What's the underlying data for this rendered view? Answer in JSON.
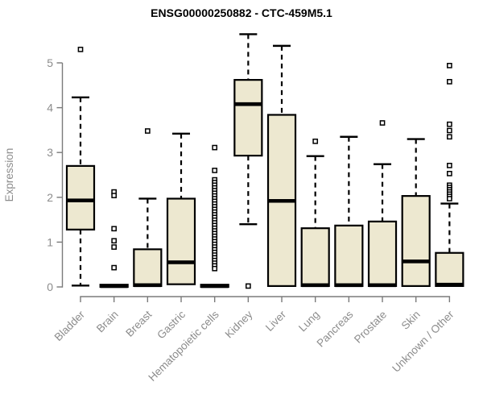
{
  "colors": {
    "box_fill": "#ede8d0",
    "box_border": "#000000",
    "median": "#000000",
    "whisker": "#000000",
    "axis": "#7a7a7a",
    "axis_text": "#8c8c8c",
    "title_text": "#000000",
    "background": "#ffffff"
  },
  "chart_data": {
    "type": "boxplot",
    "title": "ENSG00000250882 - CTC-459M5.1",
    "xlabel": "",
    "ylabel": "Expression",
    "ylim": [
      0,
      5
    ],
    "yticks": [
      0,
      1,
      2,
      3,
      4,
      5
    ],
    "grid": "off",
    "legend": "none",
    "categories": [
      "Bladder",
      "Brain",
      "Breast",
      "Gastric",
      "Hematopoietic cells",
      "Kidney",
      "Liver",
      "Lung",
      "Pancreas",
      "Prostate",
      "Skin",
      "Unknown / Other"
    ],
    "series": [
      {
        "category": "Bladder",
        "whisker_low": 0.03,
        "q1": 1.28,
        "median": 1.93,
        "q3": 2.7,
        "whisker_high": 4.23,
        "outliers": [
          5.3
        ]
      },
      {
        "category": "Brain",
        "whisker_low": 0.0,
        "q1": 0.0,
        "median": 0.02,
        "q3": 0.05,
        "whisker_high": 0.05,
        "outliers": [
          2.12,
          2.04,
          1.3,
          1.03,
          0.89,
          0.43
        ]
      },
      {
        "category": "Breast",
        "whisker_low": 0.02,
        "q1": 0.02,
        "median": 0.04,
        "q3": 0.84,
        "whisker_high": 1.97,
        "outliers": [
          3.48
        ]
      },
      {
        "category": "Gastric",
        "whisker_low": 0.06,
        "q1": 0.06,
        "median": 0.55,
        "q3": 1.97,
        "whisker_high": 3.42,
        "outliers": []
      },
      {
        "category": "Hematopoietic cells",
        "whisker_low": 0.0,
        "q1": 0.0,
        "median": 0.02,
        "q3": 0.05,
        "whisker_high": 0.05,
        "outliers": [
          3.11,
          2.6,
          2.39,
          2.33,
          2.27,
          2.21,
          2.15,
          2.09,
          2.03,
          1.97,
          1.91,
          1.85,
          1.79,
          1.73,
          1.67,
          1.61,
          1.55,
          1.49,
          1.43,
          1.37,
          1.31,
          1.25,
          1.19,
          1.13,
          1.07,
          1.01,
          0.95,
          0.89,
          0.83,
          0.77,
          0.71,
          0.65,
          0.59,
          0.53,
          0.47,
          0.41
        ]
      },
      {
        "category": "Kidney",
        "whisker_low": 1.4,
        "q1": 2.93,
        "median": 4.08,
        "q3": 4.62,
        "whisker_high": 5.64,
        "outliers": [
          0.02
        ]
      },
      {
        "category": "Liver",
        "whisker_low": 0.02,
        "q1": 0.02,
        "median": 1.92,
        "q3": 3.84,
        "whisker_high": 5.38,
        "outliers": []
      },
      {
        "category": "Lung",
        "whisker_low": 0.02,
        "q1": 0.02,
        "median": 0.04,
        "q3": 1.31,
        "whisker_high": 2.92,
        "outliers": [
          3.25
        ]
      },
      {
        "category": "Pancreas",
        "whisker_low": 0.02,
        "q1": 0.02,
        "median": 0.04,
        "q3": 1.37,
        "whisker_high": 3.35,
        "outliers": []
      },
      {
        "category": "Prostate",
        "whisker_low": 0.02,
        "q1": 0.02,
        "median": 0.04,
        "q3": 1.46,
        "whisker_high": 2.74,
        "outliers": [
          3.66
        ]
      },
      {
        "category": "Skin",
        "whisker_low": 0.02,
        "q1": 0.02,
        "median": 0.57,
        "q3": 2.03,
        "whisker_high": 3.3,
        "outliers": []
      },
      {
        "category": "Unknown / Other",
        "whisker_low": 0.02,
        "q1": 0.02,
        "median": 0.05,
        "q3": 0.76,
        "whisker_high": 1.86,
        "outliers": [
          4.94,
          4.58,
          3.63,
          3.49,
          3.35,
          2.71,
          2.53,
          2.27,
          2.22,
          2.17,
          2.12,
          2.07,
          2.02,
          1.97
        ]
      }
    ]
  }
}
